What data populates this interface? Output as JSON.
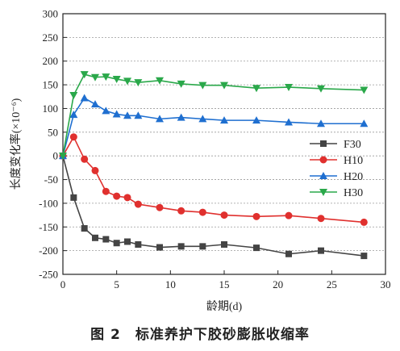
{
  "caption": "图 2　标准养护下胶砂膨胀收缩率",
  "chart_data": {
    "type": "line",
    "xlabel": "龄期(d)",
    "ylabel": "长度变化率(×10⁻⁶)",
    "xlim": [
      0,
      30
    ],
    "ylim": [
      -250,
      300
    ],
    "xticks": [
      0,
      5,
      10,
      15,
      20,
      25,
      30
    ],
    "yticks": [
      -250,
      -200,
      -150,
      -100,
      -50,
      0,
      50,
      100,
      150,
      200,
      250,
      300
    ],
    "grid": "horizontal dotted",
    "legend_position": "right-middle",
    "series": [
      {
        "name": "F30",
        "color": "#444444",
        "marker": "square",
        "x": [
          0,
          1,
          2,
          3,
          4,
          5,
          6,
          7,
          9,
          11,
          13,
          15,
          18,
          21,
          24,
          28
        ],
        "y": [
          0,
          -88,
          -153,
          -173,
          -176,
          -184,
          -181,
          -187,
          -193,
          -191,
          -191,
          -187,
          -194,
          -207,
          -200,
          -211
        ]
      },
      {
        "name": "H10",
        "color": "#e0302e",
        "marker": "circle",
        "x": [
          0,
          1,
          2,
          3,
          4,
          5,
          6,
          7,
          9,
          11,
          13,
          15,
          18,
          21,
          24,
          28
        ],
        "y": [
          0,
          40,
          -7,
          -31,
          -75,
          -85,
          -88,
          -102,
          -109,
          -116,
          -119,
          -125,
          -128,
          -126,
          -132,
          -140
        ]
      },
      {
        "name": "H20",
        "color": "#1f6fd0",
        "marker": "triangle-up",
        "x": [
          0,
          1,
          2,
          3,
          4,
          5,
          6,
          7,
          9,
          11,
          13,
          15,
          18,
          21,
          24,
          28
        ],
        "y": [
          0,
          87,
          122,
          109,
          95,
          88,
          85,
          85,
          78,
          81,
          78,
          75,
          75,
          71,
          68,
          68
        ]
      },
      {
        "name": "H30",
        "color": "#2aa84a",
        "marker": "triangle-down",
        "x": [
          0,
          1,
          2,
          3,
          4,
          5,
          6,
          7,
          9,
          11,
          13,
          15,
          18,
          21,
          24,
          28
        ],
        "y": [
          0,
          128,
          172,
          166,
          167,
          162,
          158,
          155,
          159,
          152,
          149,
          149,
          143,
          145,
          142,
          139
        ]
      }
    ]
  }
}
